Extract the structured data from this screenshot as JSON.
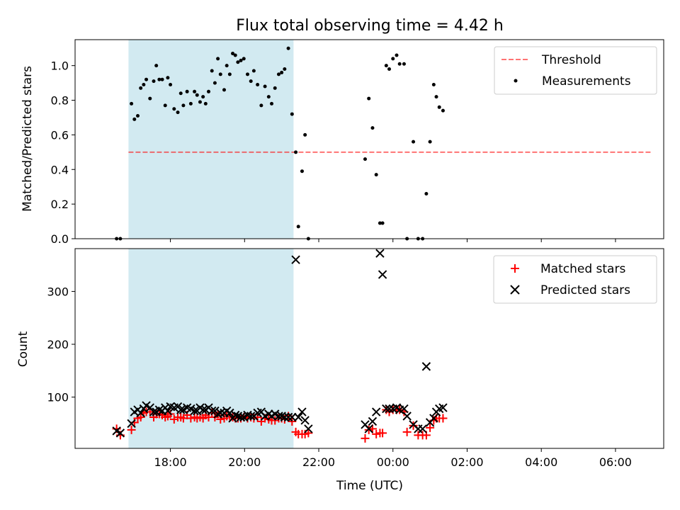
{
  "chart_data": [
    {
      "type": "scatter",
      "title": "Flux total observing time = 4.42 h",
      "xlabel": "",
      "ylabel": "Matched/Predicted stars",
      "xlim": [
        15.43,
        31.3
      ],
      "ylim": [
        0,
        1.15
      ],
      "yticks": [
        0.0,
        0.2,
        0.4,
        0.6,
        0.8,
        1.0
      ],
      "ytick_labels": [
        "0.0",
        "0.2",
        "0.4",
        "0.6",
        "0.8",
        "1.0"
      ],
      "xticks": [
        18,
        20,
        22,
        24,
        26,
        28,
        30
      ],
      "grid": false,
      "legend_position": "top-right",
      "shaded_interval": {
        "x0": 16.87,
        "x1": 21.32,
        "color": "#add8e6"
      },
      "series": [
        {
          "name": "Threshold",
          "kind": "dashed-line",
          "color": "#ff0000",
          "x": [
            16.87,
            30.98
          ],
          "y": [
            0.5,
            0.5
          ]
        },
        {
          "name": "Measurements",
          "kind": "points",
          "color": "#000000",
          "x": [
            16.55,
            16.65,
            16.95,
            17.03,
            17.12,
            17.2,
            17.28,
            17.35,
            17.45,
            17.55,
            17.62,
            17.7,
            17.78,
            17.86,
            17.93,
            18.0,
            18.1,
            18.2,
            18.28,
            18.35,
            18.45,
            18.55,
            18.65,
            18.72,
            18.8,
            18.88,
            18.95,
            19.03,
            19.12,
            19.2,
            19.28,
            19.35,
            19.45,
            19.52,
            19.6,
            19.68,
            19.75,
            19.82,
            19.9,
            19.98,
            20.08,
            20.17,
            20.25,
            20.35,
            20.45,
            20.55,
            20.65,
            20.73,
            20.82,
            20.92,
            21.0,
            21.08,
            21.18,
            21.28,
            21.38,
            21.45,
            21.55,
            21.63,
            21.72,
            23.25,
            23.35,
            23.45,
            23.55,
            23.65,
            23.72,
            23.82,
            23.9,
            24.0,
            24.1,
            24.18,
            24.3,
            24.38,
            24.55,
            24.68,
            24.8,
            24.9,
            25.0,
            25.1,
            25.17,
            25.25,
            25.35
          ],
          "y": [
            0.0,
            0.0,
            0.78,
            0.69,
            0.71,
            0.87,
            0.89,
            0.92,
            0.81,
            0.91,
            1.0,
            0.92,
            0.92,
            0.77,
            0.93,
            0.89,
            0.75,
            0.73,
            0.84,
            0.77,
            0.85,
            0.78,
            0.85,
            0.83,
            0.79,
            0.82,
            0.78,
            0.85,
            0.97,
            0.9,
            1.04,
            0.95,
            0.86,
            1.0,
            0.95,
            1.07,
            1.06,
            1.02,
            1.03,
            1.04,
            0.95,
            0.91,
            0.97,
            0.89,
            0.77,
            0.88,
            0.82,
            0.78,
            0.87,
            0.95,
            0.96,
            0.98,
            1.1,
            0.72,
            0.5,
            0.07,
            0.39,
            0.6,
            0.0,
            0.46,
            0.81,
            0.64,
            0.37,
            0.09,
            0.09,
            1.0,
            0.98,
            1.04,
            1.06,
            1.01,
            1.01,
            0.0,
            0.56,
            0.0,
            0.0,
            0.26,
            0.56,
            0.89,
            0.82,
            0.76,
            0.74
          ]
        }
      ]
    },
    {
      "type": "scatter",
      "title": "",
      "xlabel": "Time (UTC)",
      "ylabel": "Count",
      "xlim": [
        15.43,
        31.3
      ],
      "ylim": [
        3,
        381
      ],
      "yticks": [
        100,
        200,
        300
      ],
      "ytick_labels": [
        "100",
        "200",
        "300"
      ],
      "xticks": [
        18,
        20,
        22,
        24,
        26,
        28,
        30
      ],
      "xtick_labels": [
        "18:00",
        "20:00",
        "22:00",
        "00:00",
        "02:00",
        "04:00",
        "06:00"
      ],
      "grid": false,
      "legend_position": "top-right",
      "shaded_interval": {
        "x0": 16.87,
        "x1": 21.32,
        "color": "#add8e6"
      },
      "series": [
        {
          "name": "Matched stars",
          "kind": "plus-markers",
          "color": "#ff0000",
          "x": [
            16.55,
            16.65,
            16.95,
            17.03,
            17.12,
            17.2,
            17.28,
            17.35,
            17.45,
            17.55,
            17.62,
            17.7,
            17.78,
            17.86,
            17.93,
            18.0,
            18.1,
            18.2,
            18.28,
            18.35,
            18.45,
            18.55,
            18.65,
            18.72,
            18.8,
            18.88,
            18.95,
            19.03,
            19.12,
            19.2,
            19.28,
            19.35,
            19.45,
            19.52,
            19.6,
            19.68,
            19.75,
            19.82,
            19.9,
            19.98,
            20.08,
            20.17,
            20.25,
            20.35,
            20.45,
            20.55,
            20.65,
            20.73,
            20.82,
            20.92,
            21.0,
            21.08,
            21.18,
            21.28,
            21.38,
            21.45,
            21.55,
            21.63,
            21.72,
            23.25,
            23.35,
            23.45,
            23.55,
            23.65,
            23.72,
            23.82,
            23.9,
            24.0,
            24.1,
            24.18,
            24.3,
            24.38,
            24.55,
            24.68,
            24.8,
            24.9,
            25.0,
            25.1,
            25.17,
            25.25,
            25.35
          ],
          "y": [
            40,
            28,
            38,
            52,
            60,
            62,
            70,
            72,
            72,
            62,
            68,
            68,
            66,
            62,
            64,
            68,
            58,
            62,
            62,
            60,
            66,
            60,
            62,
            60,
            62,
            60,
            66,
            62,
            70,
            62,
            68,
            58,
            60,
            64,
            64,
            62,
            60,
            60,
            60,
            62,
            60,
            62,
            60,
            62,
            54,
            60,
            58,
            56,
            56,
            60,
            60,
            58,
            64,
            54,
            34,
            30,
            30,
            30,
            32,
            22,
            38,
            40,
            30,
            32,
            32,
            76,
            72,
            76,
            76,
            76,
            72,
            34,
            46,
            28,
            28,
            28,
            42,
            56,
            60,
            60,
            60
          ]
        },
        {
          "name": "Predicted stars",
          "kind": "x-markers",
          "color": "#000000",
          "x": [
            16.55,
            16.65,
            16.95,
            17.03,
            17.12,
            17.2,
            17.28,
            17.35,
            17.45,
            17.55,
            17.62,
            17.7,
            17.78,
            17.86,
            17.93,
            18.0,
            18.1,
            18.2,
            18.28,
            18.35,
            18.45,
            18.55,
            18.65,
            18.72,
            18.8,
            18.88,
            18.95,
            19.03,
            19.12,
            19.2,
            19.28,
            19.35,
            19.45,
            19.52,
            19.6,
            19.68,
            19.75,
            19.82,
            19.9,
            19.98,
            20.08,
            20.17,
            20.25,
            20.35,
            20.45,
            20.55,
            20.65,
            20.73,
            20.82,
            20.92,
            21.0,
            21.08,
            21.18,
            21.28,
            21.38,
            21.45,
            21.55,
            21.63,
            21.72,
            23.25,
            23.35,
            23.45,
            23.55,
            23.65,
            23.72,
            23.82,
            23.9,
            24.0,
            24.1,
            24.18,
            24.3,
            24.38,
            24.55,
            24.68,
            24.8,
            24.9,
            25.0,
            25.1,
            25.17,
            25.25,
            25.35
          ],
          "y": [
            36,
            32,
            50,
            72,
            76,
            70,
            78,
            84,
            80,
            72,
            72,
            76,
            74,
            80,
            74,
            82,
            80,
            82,
            76,
            76,
            80,
            78,
            74,
            74,
            80,
            76,
            76,
            80,
            74,
            74,
            68,
            70,
            70,
            74,
            70,
            60,
            66,
            64,
            62,
            62,
            66,
            64,
            64,
            70,
            72,
            64,
            68,
            64,
            68,
            64,
            64,
            62,
            62,
            62,
            360,
            62,
            72,
            56,
            40,
            48,
            40,
            54,
            72,
            372,
            332,
            78,
            78,
            78,
            80,
            76,
            78,
            64,
            48,
            40,
            40,
            158,
            52,
            60,
            72,
            78,
            80
          ]
        }
      ]
    }
  ]
}
